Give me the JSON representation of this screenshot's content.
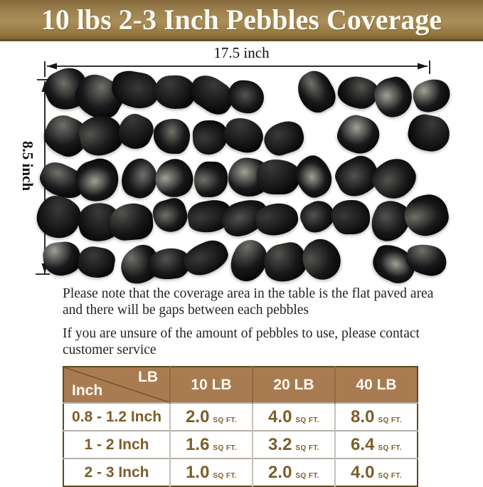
{
  "banner": {
    "title": "10 lbs 2-3 Inch Pebbles Coverage"
  },
  "diagram": {
    "width_label": "17.5 inch",
    "height_label": "8.5 inch"
  },
  "notes": {
    "note1_line1": "Please note that the coverage area in the table is the flat paved area",
    "note1_line2": "and there will be gaps between each pebbles",
    "note2_line1": "If you are unsure of the amount of pebbles to use, please contact",
    "note2_line2": "customer service"
  },
  "table": {
    "corner_top_right": "LB",
    "corner_bottom_left": "Inch",
    "columns": [
      "10 LB",
      "20 LB",
      "40 LB"
    ],
    "rows": [
      {
        "size": "0.8 - 1.2 Inch",
        "cells": [
          {
            "value": "2.0",
            "unit": "SQ FT."
          },
          {
            "value": "4.0",
            "unit": "SQ FT."
          },
          {
            "value": "8.0",
            "unit": "SQ FT."
          }
        ]
      },
      {
        "size": "1 - 2 Inch",
        "cells": [
          {
            "value": "1.6",
            "unit": "SQ FT."
          },
          {
            "value": "3.2",
            "unit": "SQ FT."
          },
          {
            "value": "6.4",
            "unit": "SQ FT."
          }
        ]
      },
      {
        "size": "2 - 3 Inch",
        "cells": [
          {
            "value": "1.0",
            "unit": "SQ FT."
          },
          {
            "value": "2.0",
            "unit": "SQ FT."
          },
          {
            "value": "4.0",
            "unit": "SQ FT."
          }
        ]
      }
    ]
  },
  "chart_data": {
    "type": "table",
    "title": "10 lbs 2-3 Inch Pebbles Coverage",
    "columns": [
      "Inch \\ LB",
      "10 LB",
      "20 LB",
      "40 LB"
    ],
    "rows": [
      [
        "0.8 - 1.2 Inch",
        "2.0 SQ FT.",
        "4.0 SQ FT.",
        "8.0 SQ FT."
      ],
      [
        "1 - 2 Inch",
        "1.6 SQ FT.",
        "3.2 SQ FT.",
        "6.4 SQ FT."
      ],
      [
        "2 - 3 Inch",
        "1.0 SQ FT.",
        "2.0 SQ FT.",
        "4.0 SQ FT."
      ]
    ]
  },
  "colors": {
    "banner_bg": "#a48852",
    "banner_underline": "#64512a",
    "header_bg": "#a97b50",
    "table_text_brown": "#7d5e28",
    "table_outer_border": "#5e4a20",
    "title_text": "#fcfaf2",
    "pebble_black": "#0a0a0a"
  }
}
